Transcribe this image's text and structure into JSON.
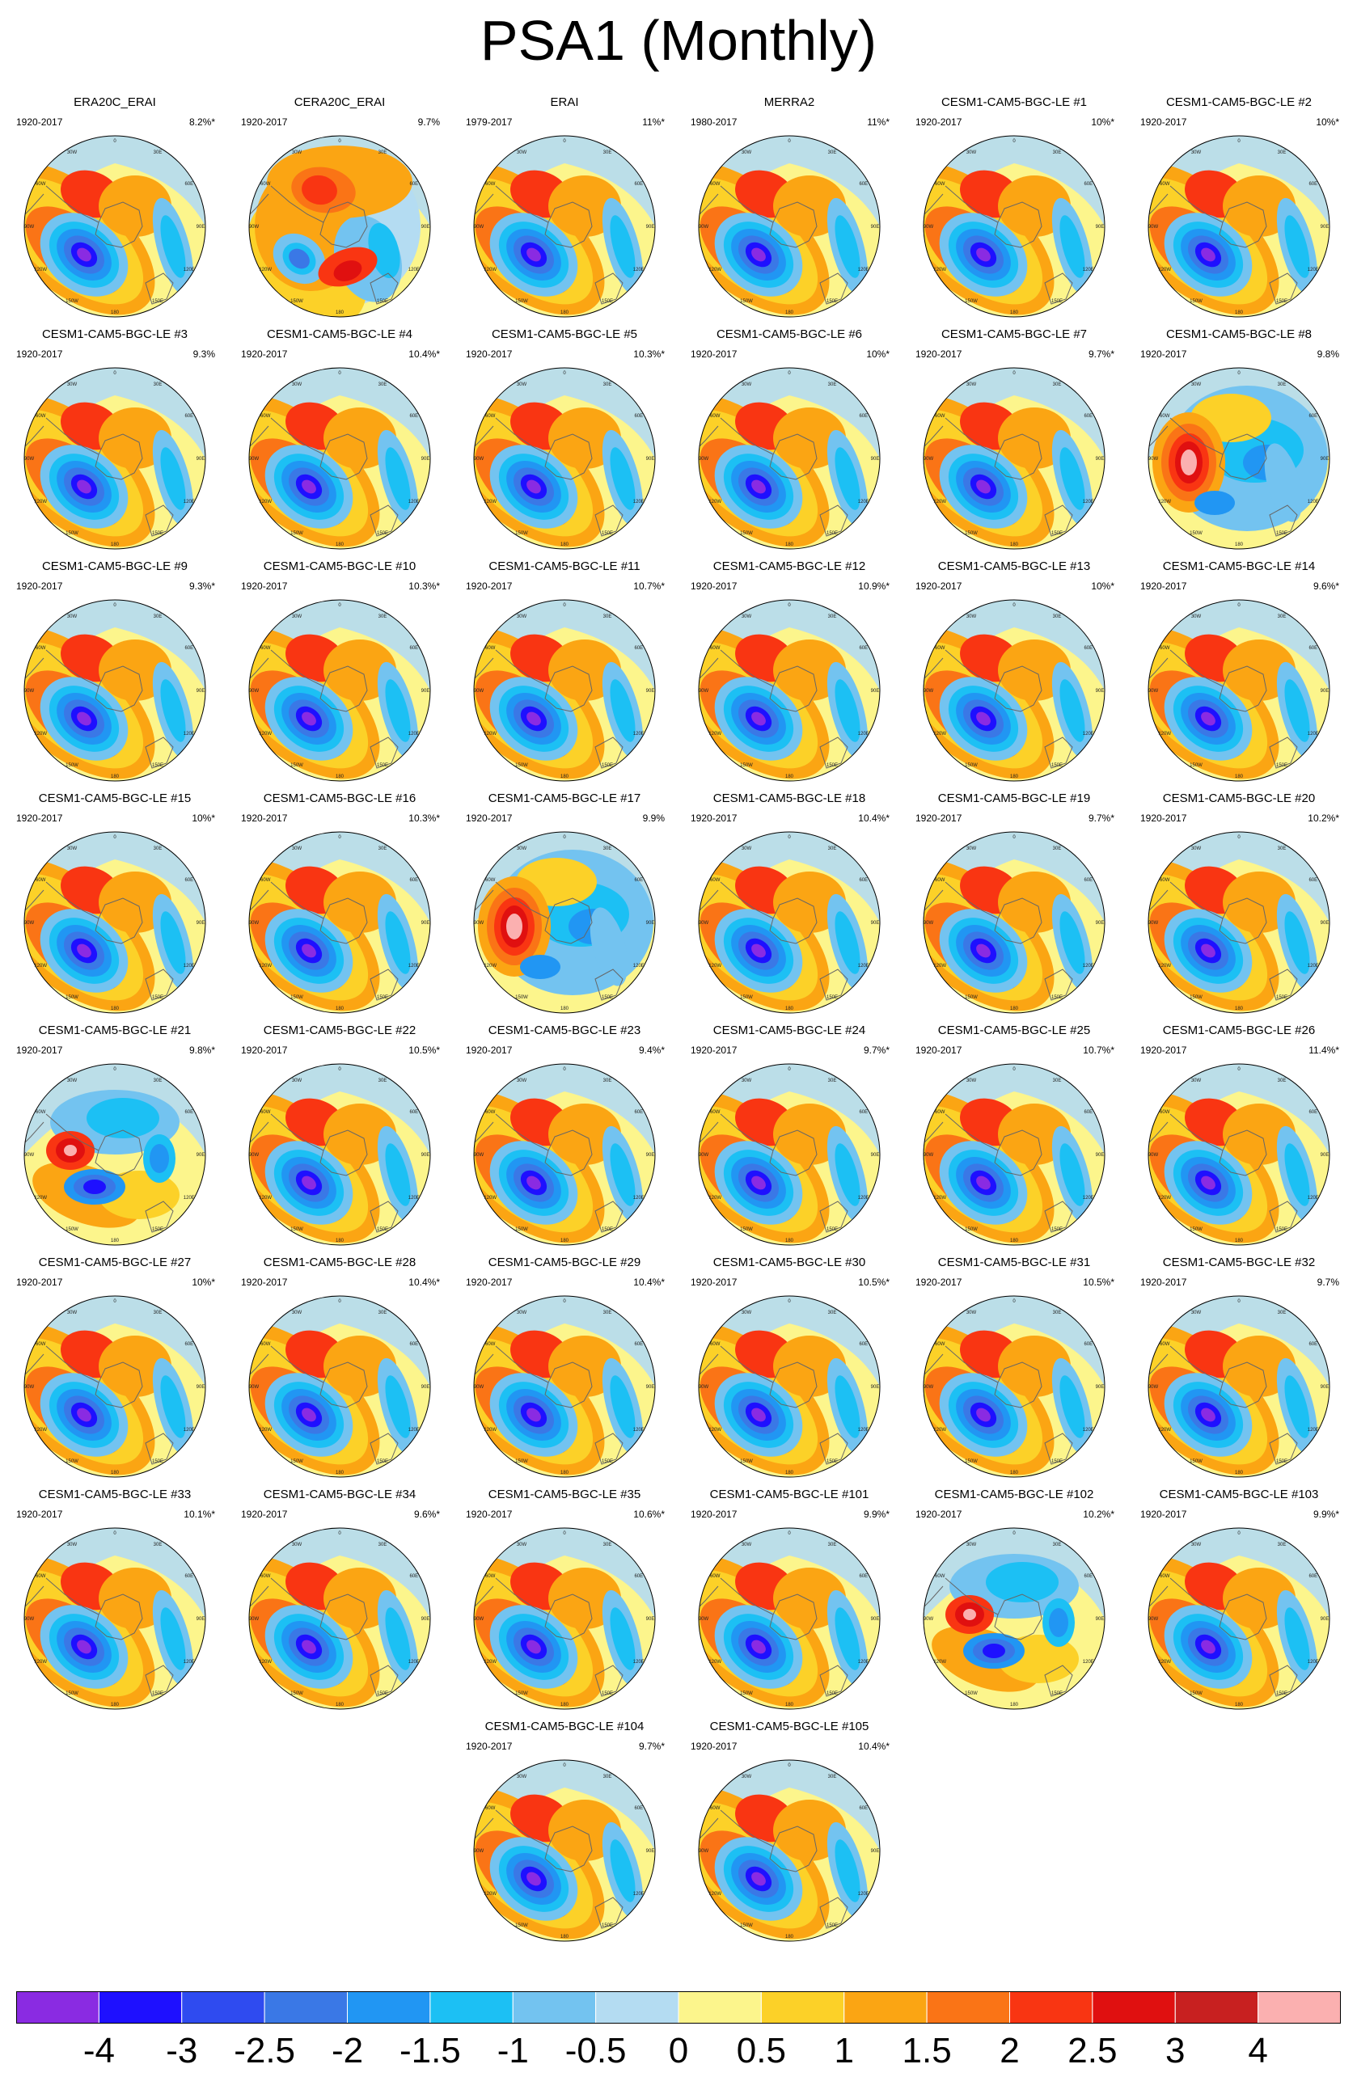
{
  "title": "PSA1 (Monthly)",
  "chart_data": {
    "type": "heatmap",
    "title": "PSA1 (Monthly)",
    "projection": "south polar stereographic",
    "longitude_labels": [
      "0",
      "30E",
      "60E",
      "90E",
      "120E",
      "150E",
      "180",
      "150W",
      "120W",
      "90W",
      "60W",
      "30W"
    ],
    "colorbar": {
      "levels": [
        "-4",
        "-3",
        "-2.5",
        "-2",
        "-1.5",
        "-1",
        "-0.5",
        "0",
        "0.5",
        "1",
        "1.5",
        "2",
        "2.5",
        "3",
        "4"
      ],
      "colors": [
        "#8a2be2",
        "#1e10ff",
        "#2f4bf0",
        "#3a78e6",
        "#2196f3",
        "#1cc0f4",
        "#73c3f0",
        "#b4dcf2",
        "#fcf58c",
        "#fcd128",
        "#fba513",
        "#fa7416",
        "#f93512",
        "#e01010",
        "#c82020",
        "#fbb0b0"
      ]
    },
    "panels": [
      {
        "name": "ERA20C_ERAI",
        "years": "1920-2017",
        "pct": "8.2%*"
      },
      {
        "name": "CERA20C_ERAI",
        "years": "1920-2017",
        "pct": "9.7%"
      },
      {
        "name": "ERAI",
        "years": "1979-2017",
        "pct": "11%*"
      },
      {
        "name": "MERRA2",
        "years": "1980-2017",
        "pct": "11%*"
      },
      {
        "name": "CESM1-CAM5-BGC-LE #1",
        "years": "1920-2017",
        "pct": "10%*"
      },
      {
        "name": "CESM1-CAM5-BGC-LE #2",
        "years": "1920-2017",
        "pct": "10%*"
      },
      {
        "name": "CESM1-CAM5-BGC-LE #3",
        "years": "1920-2017",
        "pct": "9.3%"
      },
      {
        "name": "CESM1-CAM5-BGC-LE #4",
        "years": "1920-2017",
        "pct": "10.4%*"
      },
      {
        "name": "CESM1-CAM5-BGC-LE #5",
        "years": "1920-2017",
        "pct": "10.3%*"
      },
      {
        "name": "CESM1-CAM5-BGC-LE #6",
        "years": "1920-2017",
        "pct": "10%*"
      },
      {
        "name": "CESM1-CAM5-BGC-LE #7",
        "years": "1920-2017",
        "pct": "9.7%*"
      },
      {
        "name": "CESM1-CAM5-BGC-LE #8",
        "years": "1920-2017",
        "pct": "9.8%"
      },
      {
        "name": "CESM1-CAM5-BGC-LE #9",
        "years": "1920-2017",
        "pct": "9.3%*"
      },
      {
        "name": "CESM1-CAM5-BGC-LE #10",
        "years": "1920-2017",
        "pct": "10.3%*"
      },
      {
        "name": "CESM1-CAM5-BGC-LE #11",
        "years": "1920-2017",
        "pct": "10.7%*"
      },
      {
        "name": "CESM1-CAM5-BGC-LE #12",
        "years": "1920-2017",
        "pct": "10.9%*"
      },
      {
        "name": "CESM1-CAM5-BGC-LE #13",
        "years": "1920-2017",
        "pct": "10%*"
      },
      {
        "name": "CESM1-CAM5-BGC-LE #14",
        "years": "1920-2017",
        "pct": "9.6%*"
      },
      {
        "name": "CESM1-CAM5-BGC-LE #15",
        "years": "1920-2017",
        "pct": "10%*"
      },
      {
        "name": "CESM1-CAM5-BGC-LE #16",
        "years": "1920-2017",
        "pct": "10.3%*"
      },
      {
        "name": "CESM1-CAM5-BGC-LE #17",
        "years": "1920-2017",
        "pct": "9.9%"
      },
      {
        "name": "CESM1-CAM5-BGC-LE #18",
        "years": "1920-2017",
        "pct": "10.4%*"
      },
      {
        "name": "CESM1-CAM5-BGC-LE #19",
        "years": "1920-2017",
        "pct": "9.7%*"
      },
      {
        "name": "CESM1-CAM5-BGC-LE #20",
        "years": "1920-2017",
        "pct": "10.2%*"
      },
      {
        "name": "CESM1-CAM5-BGC-LE #21",
        "years": "1920-2017",
        "pct": "9.8%*"
      },
      {
        "name": "CESM1-CAM5-BGC-LE #22",
        "years": "1920-2017",
        "pct": "10.5%*"
      },
      {
        "name": "CESM1-CAM5-BGC-LE #23",
        "years": "1920-2017",
        "pct": "9.4%*"
      },
      {
        "name": "CESM1-CAM5-BGC-LE #24",
        "years": "1920-2017",
        "pct": "9.7%*"
      },
      {
        "name": "CESM1-CAM5-BGC-LE #25",
        "years": "1920-2017",
        "pct": "10.7%*"
      },
      {
        "name": "CESM1-CAM5-BGC-LE #26",
        "years": "1920-2017",
        "pct": "11.4%*"
      },
      {
        "name": "CESM1-CAM5-BGC-LE #27",
        "years": "1920-2017",
        "pct": "10%*"
      },
      {
        "name": "CESM1-CAM5-BGC-LE #28",
        "years": "1920-2017",
        "pct": "10.4%*"
      },
      {
        "name": "CESM1-CAM5-BGC-LE #29",
        "years": "1920-2017",
        "pct": "10.4%*"
      },
      {
        "name": "CESM1-CAM5-BGC-LE #30",
        "years": "1920-2017",
        "pct": "10.5%*"
      },
      {
        "name": "CESM1-CAM5-BGC-LE #31",
        "years": "1920-2017",
        "pct": "10.5%*"
      },
      {
        "name": "CESM1-CAM5-BGC-LE #32",
        "years": "1920-2017",
        "pct": "9.7%"
      },
      {
        "name": "CESM1-CAM5-BGC-LE #33",
        "years": "1920-2017",
        "pct": "10.1%*"
      },
      {
        "name": "CESM1-CAM5-BGC-LE #34",
        "years": "1920-2017",
        "pct": "9.6%*"
      },
      {
        "name": "CESM1-CAM5-BGC-LE #35",
        "years": "1920-2017",
        "pct": "10.6%*"
      },
      {
        "name": "CESM1-CAM5-BGC-LE #101",
        "years": "1920-2017",
        "pct": "9.9%*"
      },
      {
        "name": "CESM1-CAM5-BGC-LE #102",
        "years": "1920-2017",
        "pct": "10.2%*"
      },
      {
        "name": "CESM1-CAM5-BGC-LE #103",
        "years": "1920-2017",
        "pct": "9.9%*"
      },
      {
        "name": "CESM1-CAM5-BGC-LE #104",
        "years": "1920-2017",
        "pct": "9.7%*"
      },
      {
        "name": "CESM1-CAM5-BGC-LE #105",
        "years": "1920-2017",
        "pct": "10.4%*"
      }
    ]
  }
}
